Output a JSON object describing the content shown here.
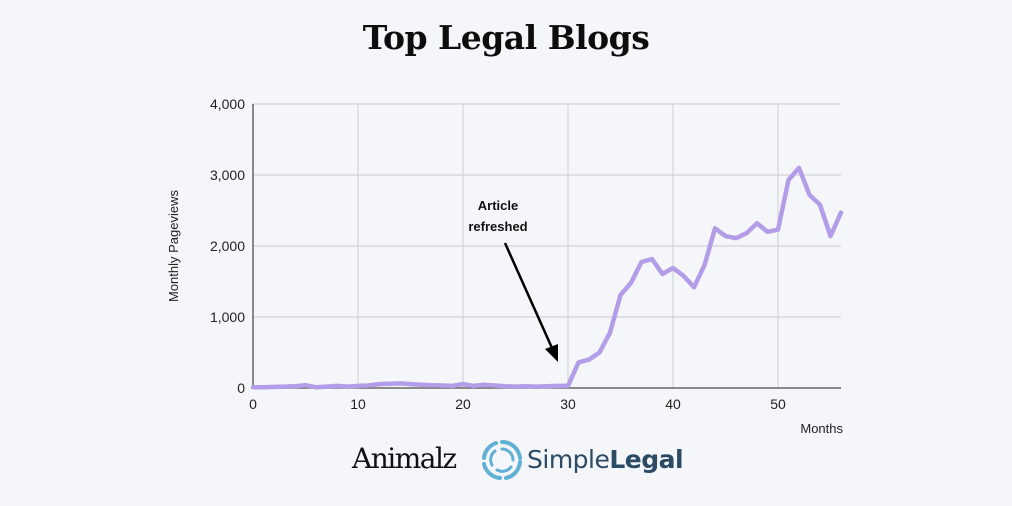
{
  "header": {
    "title": "Top Legal Blogs"
  },
  "annotation": {
    "line1": "Article",
    "line2": "refreshed"
  },
  "logos": {
    "left": "Animalz",
    "right_light": "Simple",
    "right_bold": "Legal"
  },
  "colors": {
    "background": "#f5f6fa",
    "line": "#b39ce8",
    "grid": "#d4d4d4",
    "axis": "#666666",
    "logo_blue": "#5fb0d4",
    "logo_text": "#2b4a63"
  },
  "chart_data": {
    "type": "line",
    "title": "Top Legal Blogs",
    "xlabel": "Months",
    "ylabel": "Monthly Pageviews",
    "xlim": [
      0,
      56
    ],
    "ylim": [
      0,
      4000
    ],
    "x_ticks": [
      0,
      10,
      20,
      30,
      40,
      50
    ],
    "y_ticks": [
      0,
      1000,
      2000,
      3000,
      4000
    ],
    "x_tick_labels": [
      "0",
      "10",
      "20",
      "30",
      "40",
      "50"
    ],
    "y_tick_labels": [
      "0",
      "1,000",
      "2,000",
      "3,000",
      "4,000"
    ],
    "grid": true,
    "annotations": [
      {
        "text": "Article refreshed",
        "x": 29,
        "y": 350,
        "arrow": true
      }
    ],
    "series": [
      {
        "name": "Monthly Pageviews",
        "x": [
          0,
          1,
          2,
          3,
          4,
          5,
          6,
          7,
          8,
          9,
          10,
          11,
          12,
          13,
          14,
          15,
          16,
          17,
          18,
          19,
          20,
          21,
          22,
          23,
          24,
          25,
          26,
          27,
          28,
          29,
          30,
          31,
          32,
          33,
          34,
          35,
          36,
          37,
          38,
          39,
          40,
          41,
          42,
          43,
          44,
          45,
          46,
          47,
          48,
          49,
          50,
          51,
          52,
          53,
          54,
          55,
          56
        ],
        "values": [
          10,
          10,
          15,
          20,
          25,
          40,
          10,
          20,
          30,
          20,
          30,
          35,
          55,
          60,
          65,
          55,
          45,
          40,
          35,
          30,
          55,
          30,
          45,
          35,
          25,
          20,
          25,
          20,
          25,
          30,
          30,
          360,
          400,
          500,
          780,
          1310,
          1480,
          1775,
          1815,
          1605,
          1690,
          1580,
          1420,
          1730,
          2250,
          2140,
          2110,
          2180,
          2320,
          2200,
          2230,
          2930,
          3100,
          2720,
          2580,
          2140,
          2470
        ]
      }
    ]
  }
}
